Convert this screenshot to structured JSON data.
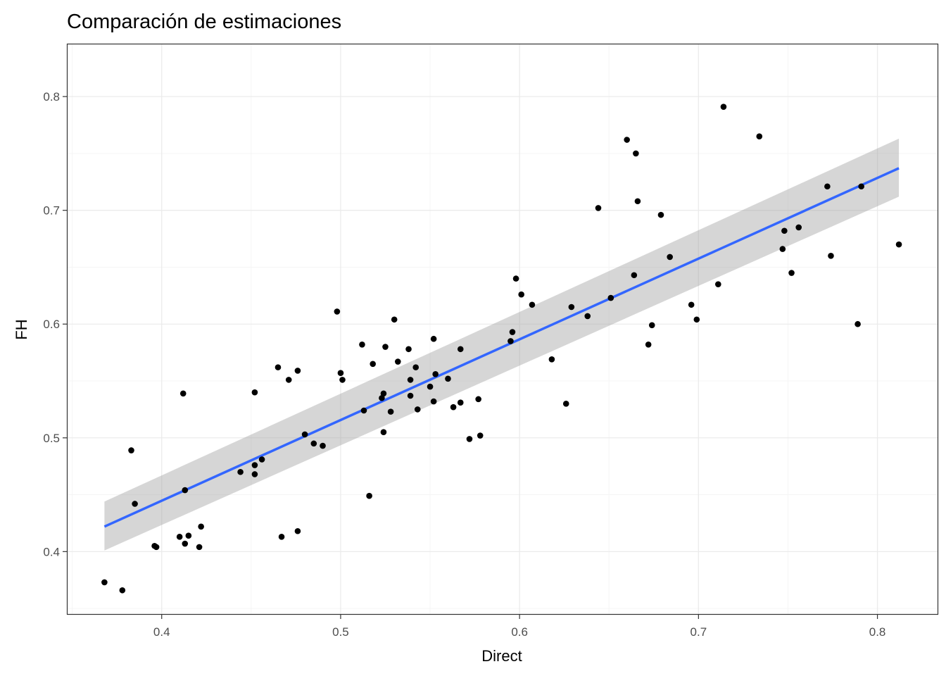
{
  "chart_data": {
    "type": "scatter",
    "title": "Comparación de estimaciones",
    "xlabel": "Direct",
    "ylabel": "FH",
    "xlim": [
      0.347,
      0.834
    ],
    "ylim": [
      0.3445,
      0.8465
    ],
    "x_ticks": [
      0.4,
      0.5,
      0.6,
      0.7,
      0.8
    ],
    "x_tick_labels": [
      "0.4",
      "0.5",
      "0.6",
      "0.7",
      "0.8"
    ],
    "y_ticks": [
      0.4,
      0.5,
      0.6,
      0.7,
      0.8
    ],
    "y_tick_labels": [
      "0.4",
      "0.5",
      "0.6",
      "0.7",
      "0.8"
    ],
    "grid": true,
    "legend": "none",
    "colors": {
      "points": "#000000",
      "fit_line": "#3366ff",
      "confidence_band": "#999999",
      "panel_border": "#333333",
      "grid_major": "#ebebeb",
      "grid_minor": "#f5f5f5"
    },
    "points": [
      [
        0.368,
        0.373
      ],
      [
        0.378,
        0.366
      ],
      [
        0.383,
        0.489
      ],
      [
        0.385,
        0.442
      ],
      [
        0.396,
        0.405
      ],
      [
        0.397,
        0.404
      ],
      [
        0.41,
        0.413
      ],
      [
        0.412,
        0.539
      ],
      [
        0.413,
        0.454
      ],
      [
        0.413,
        0.407
      ],
      [
        0.415,
        0.414
      ],
      [
        0.421,
        0.404
      ],
      [
        0.422,
        0.422
      ],
      [
        0.444,
        0.47
      ],
      [
        0.452,
        0.54
      ],
      [
        0.452,
        0.468
      ],
      [
        0.452,
        0.476
      ],
      [
        0.456,
        0.481
      ],
      [
        0.465,
        0.562
      ],
      [
        0.467,
        0.413
      ],
      [
        0.471,
        0.551
      ],
      [
        0.476,
        0.559
      ],
      [
        0.476,
        0.418
      ],
      [
        0.48,
        0.503
      ],
      [
        0.485,
        0.495
      ],
      [
        0.49,
        0.493
      ],
      [
        0.498,
        0.611
      ],
      [
        0.5,
        0.557
      ],
      [
        0.501,
        0.551
      ],
      [
        0.512,
        0.582
      ],
      [
        0.513,
        0.524
      ],
      [
        0.516,
        0.449
      ],
      [
        0.518,
        0.565
      ],
      [
        0.523,
        0.535
      ],
      [
        0.524,
        0.505
      ],
      [
        0.524,
        0.539
      ],
      [
        0.525,
        0.58
      ],
      [
        0.528,
        0.523
      ],
      [
        0.53,
        0.604
      ],
      [
        0.532,
        0.567
      ],
      [
        0.538,
        0.578
      ],
      [
        0.539,
        0.537
      ],
      [
        0.539,
        0.551
      ],
      [
        0.542,
        0.562
      ],
      [
        0.543,
        0.525
      ],
      [
        0.55,
        0.545
      ],
      [
        0.552,
        0.532
      ],
      [
        0.552,
        0.587
      ],
      [
        0.553,
        0.556
      ],
      [
        0.56,
        0.552
      ],
      [
        0.563,
        0.527
      ],
      [
        0.567,
        0.531
      ],
      [
        0.567,
        0.578
      ],
      [
        0.572,
        0.499
      ],
      [
        0.577,
        0.534
      ],
      [
        0.578,
        0.502
      ],
      [
        0.595,
        0.585
      ],
      [
        0.596,
        0.593
      ],
      [
        0.598,
        0.64
      ],
      [
        0.601,
        0.626
      ],
      [
        0.607,
        0.617
      ],
      [
        0.618,
        0.569
      ],
      [
        0.626,
        0.53
      ],
      [
        0.629,
        0.615
      ],
      [
        0.638,
        0.607
      ],
      [
        0.644,
        0.702
      ],
      [
        0.651,
        0.623
      ],
      [
        0.66,
        0.762
      ],
      [
        0.664,
        0.643
      ],
      [
        0.665,
        0.75
      ],
      [
        0.666,
        0.708
      ],
      [
        0.672,
        0.582
      ],
      [
        0.674,
        0.599
      ],
      [
        0.679,
        0.696
      ],
      [
        0.684,
        0.659
      ],
      [
        0.696,
        0.617
      ],
      [
        0.699,
        0.604
      ],
      [
        0.711,
        0.635
      ],
      [
        0.714,
        0.791
      ],
      [
        0.734,
        0.765
      ],
      [
        0.747,
        0.666
      ],
      [
        0.748,
        0.682
      ],
      [
        0.752,
        0.645
      ],
      [
        0.756,
        0.685
      ],
      [
        0.772,
        0.721
      ],
      [
        0.774,
        0.66
      ],
      [
        0.789,
        0.6
      ],
      [
        0.791,
        0.721
      ],
      [
        0.812,
        0.67
      ]
    ],
    "fit": {
      "method": "linear",
      "x": [
        0.368,
        0.812
      ],
      "y": [
        0.422,
        0.737
      ],
      "ci_lower": [
        0.401,
        0.712
      ],
      "ci_upper": [
        0.444,
        0.763
      ]
    }
  }
}
